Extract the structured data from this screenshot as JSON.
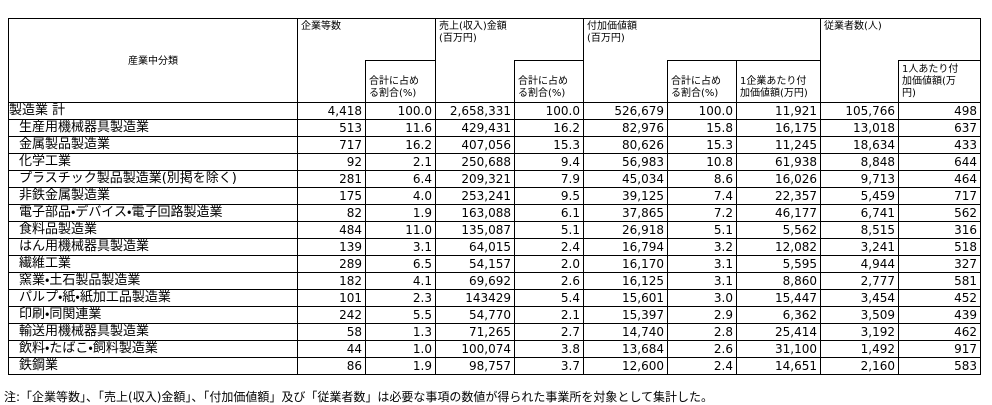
{
  "table": {
    "header": {
      "industry": "産業中分類",
      "companies": "企業等数",
      "companies_share": "合計に占め\nる割合(%)",
      "sales": "売上(収入)金額\n(百万円)",
      "sales_share": "合計に占め\nる割合(%)",
      "value_added": "付加価値額\n(百万円)",
      "value_added_share": "合計に占め\nる割合(%)",
      "value_added_per_company": "1企業あたり付\n加価値額(万円)",
      "employees": "従業者数(人)",
      "value_added_per_employee": "1人あたり付\n加価値額(万\n円)"
    },
    "rows": [
      [
        "製造業 計",
        "4,418",
        "100.0",
        "2,658,331",
        "100.0",
        "526,679",
        "100.0",
        "11,921",
        "105,766",
        "498"
      ],
      [
        "生産用機械器具製造業",
        "513",
        "11.6",
        "429,431",
        "16.2",
        "82,976",
        "15.8",
        "16,175",
        "13,018",
        "637"
      ],
      [
        "金属製品製造業",
        "717",
        "16.2",
        "407,056",
        "15.3",
        "80,626",
        "15.3",
        "11,245",
        "18,634",
        "433"
      ],
      [
        "化学工業",
        "92",
        "2.1",
        "250,688",
        "9.4",
        "56,983",
        "10.8",
        "61,938",
        "8,848",
        "644"
      ],
      [
        "プラスチック製品製造業(別掲を除く)",
        "281",
        "6.4",
        "209,321",
        "7.9",
        "45,034",
        "8.6",
        "16,026",
        "9,713",
        "464"
      ],
      [
        "非鉄金属製造業",
        "175",
        "4.0",
        "253,241",
        "9.5",
        "39,125",
        "7.4",
        "22,357",
        "5,459",
        "717"
      ],
      [
        "電子部品・デバイス・電子回路製造業",
        "82",
        "1.9",
        "163,088",
        "6.1",
        "37,865",
        "7.2",
        "46,177",
        "6,741",
        "562"
      ],
      [
        "食料品製造業",
        "484",
        "11.0",
        "135,087",
        "5.1",
        "26,918",
        "5.1",
        "5,562",
        "8,515",
        "316"
      ],
      [
        "はん用機械器具製造業",
        "139",
        "3.1",
        "64,015",
        "2.4",
        "16,794",
        "3.2",
        "12,082",
        "3,241",
        "518"
      ],
      [
        "繊維工業",
        "289",
        "6.5",
        "54,157",
        "2.0",
        "16,170",
        "3.1",
        "5,595",
        "4,944",
        "327"
      ],
      [
        "窯業・土石製品製造業",
        "182",
        "4.1",
        "69,692",
        "2.6",
        "16,125",
        "3.1",
        "8,860",
        "2,777",
        "581"
      ],
      [
        "パルプ・紙・紙加工品製造業",
        "101",
        "2.3",
        "143429",
        "5.4",
        "15,601",
        "3.0",
        "15,447",
        "3,454",
        "452"
      ],
      [
        "印刷・同関連業",
        "242",
        "5.5",
        "54,770",
        "2.1",
        "15,397",
        "2.9",
        "6,362",
        "3,509",
        "439"
      ],
      [
        "輸送用機械器具製造業",
        "58",
        "1.3",
        "71,265",
        "2.7",
        "14,740",
        "2.8",
        "25,414",
        "3,192",
        "462"
      ],
      [
        "飲料・たばこ・飼料製造業",
        "44",
        "1.0",
        "100,074",
        "3.8",
        "13,684",
        "2.6",
        "31,100",
        "1,492",
        "917"
      ],
      [
        "鉄鋼業",
        "86",
        "1.9",
        "98,757",
        "3.7",
        "12,600",
        "2.4",
        "14,651",
        "2,160",
        "583"
      ]
    ],
    "note": "注:「企業等数」、「売上(収入)金額」、「付加価値額」及び「従業者数」は必要な事項の数値が得られた事業所を対象として集計した。"
  }
}
